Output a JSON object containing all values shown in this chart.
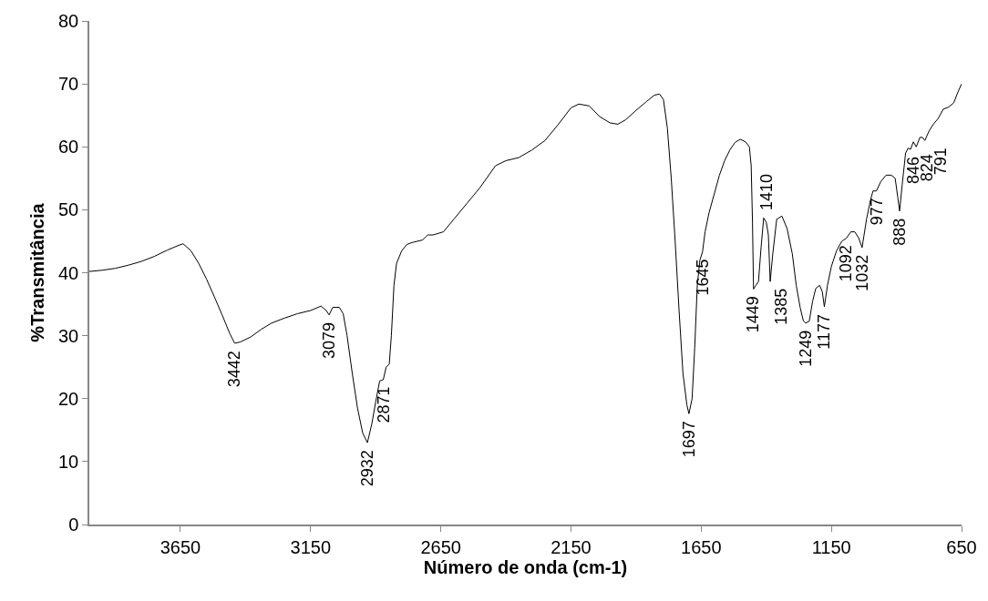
{
  "chart_data": {
    "type": "line",
    "xlabel": "Número de onda (cm-1)",
    "ylabel": "%Transmitância",
    "xlim": [
      4000,
      650
    ],
    "xticks": [
      3650,
      3150,
      2650,
      2150,
      1650,
      1150,
      650
    ],
    "ylim": [
      0,
      80
    ],
    "yticks": [
      0,
      10,
      20,
      30,
      40,
      50,
      60,
      70,
      80
    ],
    "marker": "none",
    "line_style": "solid",
    "series": [
      {
        "color": "#000000",
        "x": [
          4000,
          3950,
          3900,
          3850,
          3800,
          3750,
          3700,
          3660,
          3640,
          3610,
          3580,
          3550,
          3520,
          3490,
          3460,
          3442,
          3420,
          3380,
          3340,
          3300,
          3250,
          3200,
          3150,
          3110,
          3090,
          3079,
          3065,
          3040,
          3025,
          3010,
          2990,
          2970,
          2950,
          2932,
          2915,
          2900,
          2885,
          2871,
          2860,
          2848,
          2840,
          2830,
          2820,
          2800,
          2780,
          2760,
          2720,
          2700,
          2680,
          2640,
          2600,
          2550,
          2500,
          2440,
          2400,
          2350,
          2300,
          2250,
          2200,
          2150,
          2120,
          2080,
          2040,
          2000,
          1970,
          1940,
          1900,
          1860,
          1830,
          1810,
          1795,
          1780,
          1765,
          1750,
          1735,
          1720,
          1705,
          1697,
          1685,
          1675,
          1665,
          1655,
          1645,
          1635,
          1620,
          1600,
          1580,
          1560,
          1540,
          1520,
          1500,
          1480,
          1465,
          1458,
          1453,
          1449,
          1440,
          1430,
          1420,
          1410,
          1400,
          1392,
          1385,
          1375,
          1360,
          1340,
          1320,
          1300,
          1285,
          1270,
          1258,
          1249,
          1235,
          1222,
          1210,
          1195,
          1185,
          1177,
          1165,
          1150,
          1130,
          1110,
          1092,
          1075,
          1060,
          1045,
          1032,
          1015,
          1000,
          990,
          977,
          960,
          940,
          920,
          905,
          895,
          888,
          878,
          865,
          855,
          846,
          835,
          824,
          810,
          800,
          791,
          775,
          760,
          740,
          720,
          700,
          680,
          665,
          650
        ],
        "values": [
          40.2,
          40.4,
          40.7,
          41.2,
          41.8,
          42.6,
          43.6,
          44.3,
          44.6,
          43.5,
          41.5,
          39,
          36.2,
          33.3,
          30.3,
          28.8,
          29,
          29.8,
          31,
          32,
          32.8,
          33.5,
          34,
          34.7,
          34,
          33.3,
          34.5,
          34.5,
          33.5,
          30,
          24,
          18.5,
          14.5,
          13,
          16,
          19.5,
          22.8,
          23,
          25,
          25.5,
          30,
          38,
          41.5,
          43.5,
          44.5,
          44.8,
          45.2,
          46,
          46,
          46.5,
          48.5,
          51,
          53.5,
          57,
          57.8,
          58.3,
          59.5,
          61,
          63.5,
          66.2,
          66.8,
          66.5,
          64.8,
          63.8,
          63.6,
          64.3,
          65.8,
          67.2,
          68.2,
          68.4,
          67.5,
          63,
          55,
          45,
          34,
          24,
          19,
          17.6,
          20,
          28,
          38,
          42,
          43.3,
          46.5,
          49.5,
          52.5,
          55.5,
          57.8,
          59.5,
          60.7,
          61.2,
          60.8,
          60,
          57,
          48,
          37.4,
          38,
          38.6,
          44,
          48.7,
          48,
          46,
          38.6,
          43,
          48.5,
          49,
          47,
          43,
          38,
          34.5,
          32.4,
          32,
          32.3,
          35.5,
          37.5,
          38,
          37,
          34.6,
          38,
          41,
          43.5,
          45,
          45.5,
          46.5,
          46.5,
          45.5,
          44,
          48.5,
          51.5,
          53,
          53,
          54.5,
          55.5,
          55.5,
          55,
          52,
          49.8,
          54,
          59,
          59.8,
          59.6,
          60.8,
          60,
          61.5,
          61.5,
          61,
          62.5,
          63.5,
          64.5,
          66,
          66.3,
          67,
          68.6,
          70
        ]
      }
    ],
    "annotations": [
      {
        "text": "3442",
        "x": 3442,
        "y": 28.8
      },
      {
        "text": "3079",
        "x": 3079,
        "y": 33.3
      },
      {
        "text": "2932",
        "x": 2932,
        "y": 13
      },
      {
        "text": "2871",
        "x": 2871,
        "y": 23
      },
      {
        "text": "1697",
        "x": 1697,
        "y": 17.6
      },
      {
        "text": "1645",
        "x": 1645,
        "y": 43.3
      },
      {
        "text": "1449",
        "x": 1449,
        "y": 37.4
      },
      {
        "text": "1410",
        "x": 1410,
        "y": 48.7
      },
      {
        "text": "1385",
        "x": 1385,
        "y": 38.6
      },
      {
        "text": "1249",
        "x": 1249,
        "y": 32
      },
      {
        "text": "1177",
        "x": 1177,
        "y": 34.6
      },
      {
        "text": "1092",
        "x": 1092,
        "y": 45.5
      },
      {
        "text": "1032",
        "x": 1032,
        "y": 44
      },
      {
        "text": "977",
        "x": 977,
        "y": 53
      },
      {
        "text": "888",
        "x": 888,
        "y": 49.8
      },
      {
        "text": "846",
        "x": 846,
        "y": 59.6
      },
      {
        "text": "824",
        "x": 824,
        "y": 60
      },
      {
        "text": "791",
        "x": 791,
        "y": 61
      }
    ]
  }
}
